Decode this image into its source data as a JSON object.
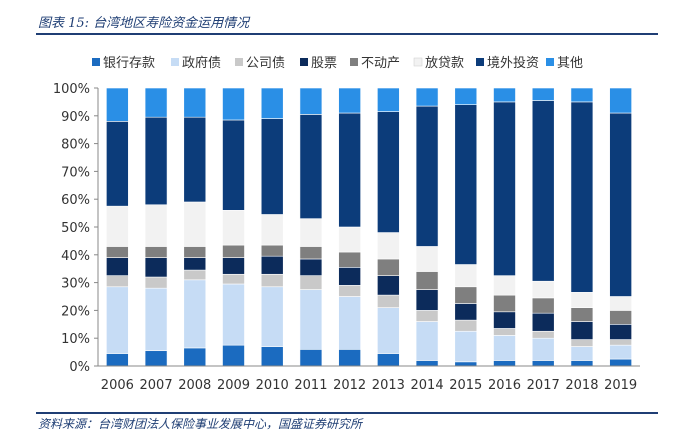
{
  "figure": {
    "title": "图表 15:  台湾地区寿险资金运用情况",
    "source": "资料来源：台湾财团法人保险事业发展中心，国盛证券研究所"
  },
  "chart_data": {
    "type": "bar",
    "stacked": true,
    "title": "",
    "xlabel": "",
    "ylabel": "",
    "ylim": [
      0,
      100
    ],
    "y_ticks": [
      0,
      10,
      20,
      30,
      40,
      50,
      60,
      70,
      80,
      90,
      100
    ],
    "y_tick_suffix": "%",
    "grid": false,
    "legend_position": "top",
    "categories": [
      "2006",
      "2007",
      "2008",
      "2009",
      "2010",
      "2011",
      "2012",
      "2013",
      "2014",
      "2015",
      "2016",
      "2017",
      "2018",
      "2019"
    ],
    "series": [
      {
        "name": "银行存款",
        "color": "#1b6bc0",
        "values": [
          4.5,
          5.5,
          6.5,
          7.5,
          7.0,
          6.0,
          6.0,
          4.5,
          2.0,
          1.5,
          2.0,
          2.0,
          2.0,
          2.5
        ]
      },
      {
        "name": "政府债",
        "color": "#c6dcf5",
        "values": [
          24.0,
          22.5,
          24.5,
          22.0,
          21.5,
          21.5,
          19.0,
          16.5,
          14.0,
          11.0,
          9.0,
          8.0,
          5.0,
          5.0
        ]
      },
      {
        "name": "公司债",
        "color": "#c9c9c9",
        "values": [
          4.0,
          4.0,
          3.5,
          3.5,
          4.5,
          5.0,
          4.0,
          4.5,
          4.0,
          4.0,
          2.5,
          2.5,
          2.5,
          2.0
        ]
      },
      {
        "name": "股票",
        "color": "#0c2b5b",
        "values": [
          6.5,
          7.0,
          4.5,
          6.0,
          6.5,
          6.0,
          6.5,
          7.0,
          7.5,
          6.0,
          6.0,
          6.5,
          6.5,
          5.5
        ]
      },
      {
        "name": "不动产",
        "color": "#7f7f7f",
        "values": [
          4.0,
          4.0,
          4.0,
          4.5,
          4.0,
          4.5,
          5.5,
          6.0,
          6.5,
          6.0,
          6.0,
          5.5,
          5.0,
          5.0
        ]
      },
      {
        "name": "放贷款",
        "color": "#f2f2f2",
        "values": [
          14.5,
          15.0,
          16.0,
          12.5,
          11.0,
          10.0,
          9.0,
          9.5,
          9.0,
          8.0,
          7.0,
          6.0,
          5.5,
          5.0
        ]
      },
      {
        "name": "境外投资",
        "color": "#0c3c7a",
        "values": [
          30.5,
          31.5,
          30.5,
          32.5,
          34.5,
          37.5,
          41.0,
          43.5,
          50.5,
          57.5,
          62.5,
          65.0,
          68.5,
          66.0
        ]
      },
      {
        "name": "其他",
        "color": "#2a8fe6",
        "values": [
          12.0,
          10.5,
          10.5,
          11.5,
          11.0,
          9.5,
          9.0,
          8.5,
          6.5,
          6.0,
          5.0,
          4.5,
          5.0,
          9.0
        ]
      }
    ]
  }
}
